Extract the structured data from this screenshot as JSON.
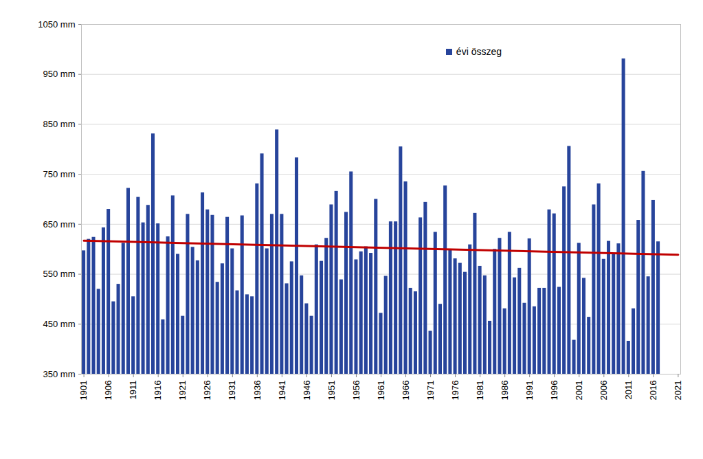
{
  "chart_data": {
    "type": "bar",
    "x": [
      1901,
      1902,
      1903,
      1904,
      1905,
      1906,
      1907,
      1908,
      1909,
      1910,
      1911,
      1912,
      1913,
      1914,
      1915,
      1916,
      1917,
      1918,
      1919,
      1920,
      1921,
      1922,
      1923,
      1924,
      1925,
      1926,
      1927,
      1928,
      1929,
      1930,
      1931,
      1932,
      1933,
      1934,
      1935,
      1936,
      1937,
      1938,
      1939,
      1940,
      1941,
      1942,
      1943,
      1944,
      1945,
      1946,
      1947,
      1948,
      1949,
      1950,
      1951,
      1952,
      1953,
      1954,
      1955,
      1956,
      1957,
      1958,
      1959,
      1960,
      1961,
      1962,
      1963,
      1964,
      1965,
      1966,
      1967,
      1968,
      1969,
      1970,
      1971,
      1972,
      1973,
      1974,
      1975,
      1976,
      1977,
      1978,
      1979,
      1980,
      1981,
      1982,
      1983,
      1984,
      1985,
      1986,
      1987,
      1988,
      1989,
      1990,
      1991,
      1992,
      1993,
      1994,
      1995,
      1996,
      1997,
      1998,
      1999,
      2000,
      2001,
      2002,
      2003,
      2004,
      2005,
      2006,
      2007,
      2008,
      2009,
      2010,
      2011,
      2012,
      2013,
      2014,
      2015,
      2016,
      2017
    ],
    "series": [
      {
        "name": "évi összeg",
        "type": "bar",
        "color": "#27449b",
        "values": [
          597,
          620,
          624,
          520,
          643,
          680,
          495,
          530,
          612,
          722,
          505,
          704,
          653,
          688,
          831,
          651,
          459,
          625,
          707,
          590,
          466,
          670,
          604,
          577,
          713,
          679,
          668,
          534,
          571,
          664,
          601,
          517,
          667,
          509,
          505,
          731,
          791,
          601,
          670,
          839,
          670,
          531,
          575,
          783,
          547,
          491,
          466,
          609,
          576,
          622,
          689,
          716,
          539,
          674,
          755,
          579,
          595,
          605,
          592,
          700,
          472,
          546,
          655,
          655,
          805,
          735,
          522,
          515,
          663,
          694,
          436,
          634,
          490,
          727,
          600,
          581,
          572,
          554,
          609,
          672,
          566,
          547,
          456,
          600,
          622,
          481,
          634,
          543,
          562,
          492,
          621,
          485,
          522,
          522,
          679,
          671,
          524,
          725,
          806,
          418,
          612,
          542,
          464,
          689,
          731,
          580,
          616,
          590,
          611,
          981,
          416,
          481,
          658,
          756,
          545,
          698,
          615
        ]
      },
      {
        "type": "line",
        "color": "#c00000",
        "x": [
          1901,
          2021
        ],
        "values": [
          617,
          589
        ]
      }
    ],
    "xlim": [
      1900.5,
      2021.5
    ],
    "xticks": [
      1901,
      1906,
      1911,
      1916,
      1921,
      1926,
      1931,
      1936,
      1941,
      1946,
      1951,
      1956,
      1961,
      1966,
      1971,
      1976,
      1981,
      1986,
      1991,
      1996,
      2001,
      2006,
      2011,
      2016,
      2021
    ],
    "ylim": [
      350,
      1050
    ],
    "yticks": [
      {
        "value": 350,
        "label": "350 mm"
      },
      {
        "value": 450,
        "label": "450 mm"
      },
      {
        "value": 550,
        "label": "550 mm"
      },
      {
        "value": 650,
        "label": "650 mm"
      },
      {
        "value": 750,
        "label": "750 mm"
      },
      {
        "value": 850,
        "label": "850 mm"
      },
      {
        "value": 950,
        "label": "950 mm"
      },
      {
        "value": 1050,
        "label": "1050 mm"
      }
    ],
    "grid": true,
    "legend": "top-right"
  }
}
